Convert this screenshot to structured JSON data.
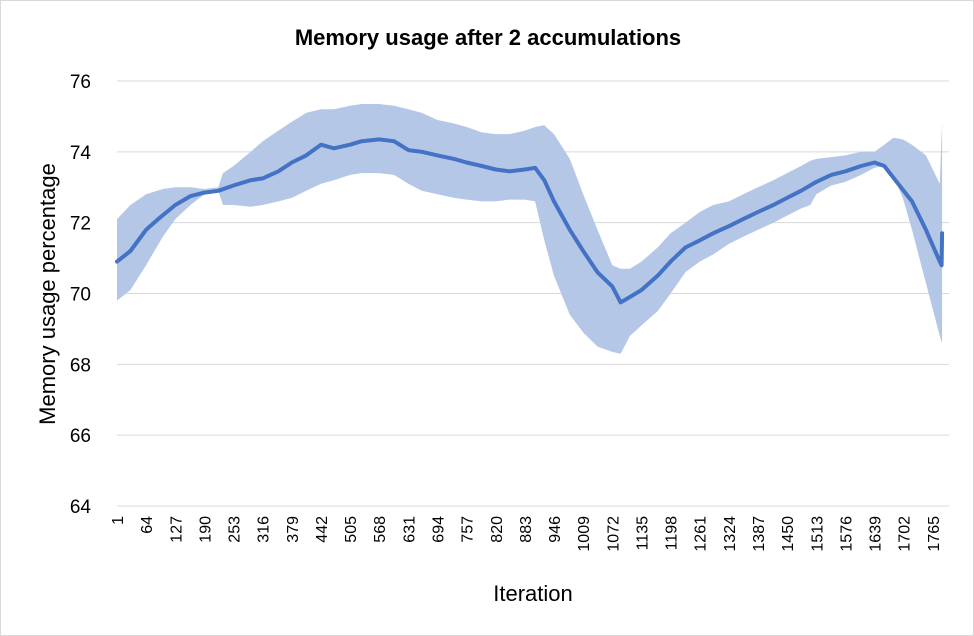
{
  "chart_data": {
    "type": "line",
    "title": "Memory usage after 2 accumulations",
    "xlabel": "Iteration",
    "ylabel": "Memory usage percentage",
    "ylim": [
      64,
      76
    ],
    "yticks": [
      64,
      66,
      68,
      70,
      72,
      74,
      76
    ],
    "xlim": [
      1,
      1800
    ],
    "xticks": [
      "1",
      "64",
      "127",
      "190",
      "253",
      "316",
      "379",
      "442",
      "505",
      "568",
      "631",
      "694",
      "757",
      "820",
      "883",
      "946",
      "1009",
      "1072",
      "1135",
      "1198",
      "1261",
      "1324",
      "1387",
      "1450",
      "1513",
      "1576",
      "1639",
      "1702",
      "1765"
    ],
    "grid": true,
    "legend": "none",
    "colors": {
      "line": "#4472c4",
      "band": "#b4c7e7",
      "grid": "#d9d9d9"
    },
    "series": [
      {
        "points": [
          [
            1,
            70.9
          ],
          [
            30,
            71.2
          ],
          [
            64,
            71.8
          ],
          [
            90,
            72.1
          ],
          [
            127,
            72.5
          ],
          [
            160,
            72.75
          ],
          [
            190,
            72.85
          ],
          [
            220,
            72.9
          ],
          [
            253,
            73.05
          ],
          [
            290,
            73.2
          ],
          [
            316,
            73.25
          ],
          [
            350,
            73.45
          ],
          [
            379,
            73.7
          ],
          [
            410,
            73.9
          ],
          [
            442,
            74.2
          ],
          [
            470,
            74.1
          ],
          [
            505,
            74.2
          ],
          [
            530,
            74.3
          ],
          [
            568,
            74.35
          ],
          [
            600,
            74.3
          ],
          [
            631,
            74.05
          ],
          [
            660,
            74.0
          ],
          [
            694,
            73.9
          ],
          [
            730,
            73.8
          ],
          [
            757,
            73.7
          ],
          [
            790,
            73.6
          ],
          [
            820,
            73.5
          ],
          [
            850,
            73.45
          ],
          [
            883,
            73.5
          ],
          [
            905,
            73.55
          ],
          [
            925,
            73.2
          ],
          [
            946,
            72.6
          ],
          [
            980,
            71.8
          ],
          [
            1009,
            71.2
          ],
          [
            1040,
            70.6
          ],
          [
            1072,
            70.2
          ],
          [
            1090,
            69.75
          ],
          [
            1110,
            69.9
          ],
          [
            1135,
            70.1
          ],
          [
            1170,
            70.5
          ],
          [
            1198,
            70.9
          ],
          [
            1230,
            71.3
          ],
          [
            1261,
            71.5
          ],
          [
            1290,
            71.7
          ],
          [
            1324,
            71.9
          ],
          [
            1355,
            72.1
          ],
          [
            1387,
            72.3
          ],
          [
            1420,
            72.5
          ],
          [
            1450,
            72.7
          ],
          [
            1480,
            72.9
          ],
          [
            1513,
            73.15
          ],
          [
            1545,
            73.35
          ],
          [
            1576,
            73.45
          ],
          [
            1610,
            73.6
          ],
          [
            1639,
            73.7
          ],
          [
            1660,
            73.6
          ],
          [
            1690,
            73.1
          ],
          [
            1720,
            72.6
          ],
          [
            1750,
            71.8
          ],
          [
            1780,
            70.9
          ],
          [
            1784,
            70.8
          ],
          [
            1785,
            71.7
          ]
        ]
      }
    ],
    "band": [
      [
        1,
        69.8,
        72.1
      ],
      [
        30,
        70.1,
        72.5
      ],
      [
        64,
        70.8,
        72.8
      ],
      [
        100,
        71.6,
        72.95
      ],
      [
        127,
        72.1,
        73.0
      ],
      [
        160,
        72.5,
        73.0
      ],
      [
        190,
        72.8,
        72.95
      ],
      [
        220,
        72.9,
        73.0
      ],
      [
        230,
        72.5,
        73.4
      ],
      [
        253,
        72.5,
        73.6
      ],
      [
        290,
        72.45,
        74.0
      ],
      [
        316,
        72.5,
        74.3
      ],
      [
        350,
        72.6,
        74.6
      ],
      [
        379,
        72.7,
        74.85
      ],
      [
        410,
        72.9,
        75.1
      ],
      [
        442,
        73.1,
        75.2
      ],
      [
        470,
        73.2,
        75.2
      ],
      [
        505,
        73.35,
        75.3
      ],
      [
        530,
        73.4,
        75.35
      ],
      [
        568,
        73.4,
        75.35
      ],
      [
        600,
        73.35,
        75.3
      ],
      [
        631,
        73.1,
        75.2
      ],
      [
        660,
        72.9,
        75.1
      ],
      [
        694,
        72.8,
        74.9
      ],
      [
        730,
        72.7,
        74.8
      ],
      [
        757,
        72.65,
        74.7
      ],
      [
        790,
        72.6,
        74.55
      ],
      [
        820,
        72.6,
        74.5
      ],
      [
        850,
        72.65,
        74.5
      ],
      [
        883,
        72.65,
        74.6
      ],
      [
        905,
        72.6,
        74.7
      ],
      [
        925,
        71.5,
        74.75
      ],
      [
        946,
        70.5,
        74.5
      ],
      [
        980,
        69.4,
        73.8
      ],
      [
        1009,
        68.9,
        72.8
      ],
      [
        1040,
        68.5,
        71.8
      ],
      [
        1072,
        68.35,
        70.8
      ],
      [
        1090,
        68.3,
        70.7
      ],
      [
        1110,
        68.8,
        70.7
      ],
      [
        1135,
        69.1,
        70.9
      ],
      [
        1170,
        69.5,
        71.3
      ],
      [
        1198,
        70.0,
        71.7
      ],
      [
        1230,
        70.6,
        72.0
      ],
      [
        1261,
        70.9,
        72.3
      ],
      [
        1290,
        71.1,
        72.5
      ],
      [
        1324,
        71.4,
        72.6
      ],
      [
        1355,
        71.6,
        72.8
      ],
      [
        1387,
        71.8,
        73.0
      ],
      [
        1420,
        72.0,
        73.2
      ],
      [
        1450,
        72.2,
        73.4
      ],
      [
        1480,
        72.4,
        73.6
      ],
      [
        1500,
        72.5,
        73.75
      ],
      [
        1513,
        72.8,
        73.8
      ],
      [
        1545,
        73.05,
        73.85
      ],
      [
        1576,
        73.15,
        73.9
      ],
      [
        1610,
        73.35,
        74.0
      ],
      [
        1639,
        73.55,
        74.0
      ],
      [
        1660,
        73.6,
        74.2
      ],
      [
        1680,
        73.3,
        74.4
      ],
      [
        1700,
        72.7,
        74.35
      ],
      [
        1720,
        71.8,
        74.2
      ],
      [
        1750,
        70.3,
        73.9
      ],
      [
        1780,
        68.8,
        73.1
      ],
      [
        1785,
        68.6,
        74.85
      ]
    ]
  }
}
